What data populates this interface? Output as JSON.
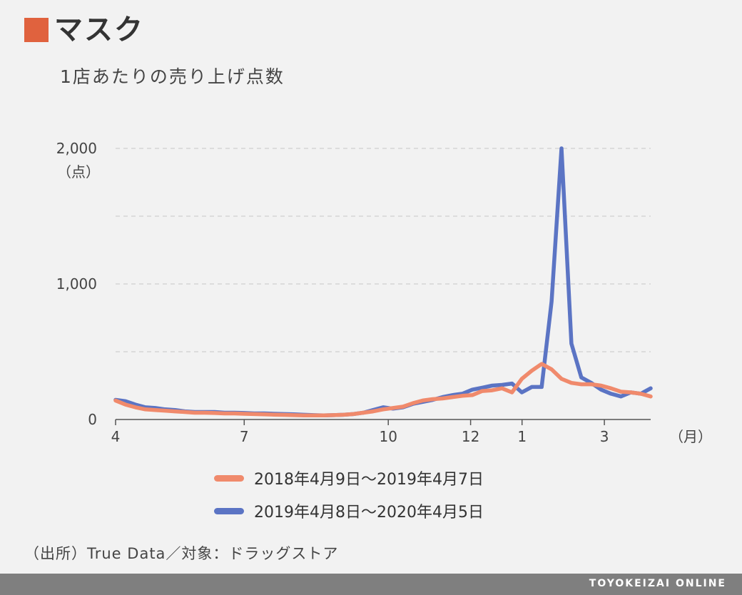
{
  "title": "マスク",
  "subtitle": "1店あたりの売り上げ点数",
  "source": "（出所）True Data／対象：ドラッグストア",
  "footer": "TOYOKEIZAI ONLINE",
  "colors": {
    "accent": "#e0623e",
    "series_2018": "#f08a6c",
    "series_2019": "#5b74c4"
  },
  "chart_data": {
    "type": "line",
    "ylabel": "（点）",
    "xunit": "（月）",
    "ylim": [
      0,
      2000
    ],
    "yticks": [
      0,
      1000,
      2000
    ],
    "ytick_labels": [
      "0",
      "1,000",
      "2,000"
    ],
    "ygrid": [
      500,
      1000,
      1500,
      2000
    ],
    "xlim": [
      0,
      52
    ],
    "xticks": [
      {
        "week": 0,
        "label": "4"
      },
      {
        "week": 12.5,
        "label": "7"
      },
      {
        "week": 26.5,
        "label": "10"
      },
      {
        "week": 34.5,
        "label": "12"
      },
      {
        "week": 39.5,
        "label": "1"
      },
      {
        "week": 47.5,
        "label": "3"
      }
    ],
    "grid": true,
    "legend_position": "bottom",
    "series": [
      {
        "name": "2019年4月8日～2020年4月5日",
        "color": "#5b74c4",
        "values": [
          145,
          135,
          110,
          90,
          85,
          75,
          70,
          60,
          55,
          55,
          55,
          50,
          50,
          48,
          45,
          45,
          42,
          40,
          38,
          35,
          32,
          30,
          32,
          35,
          40,
          50,
          70,
          90,
          80,
          90,
          115,
          130,
          145,
          165,
          180,
          190,
          220,
          235,
          250,
          255,
          265,
          200,
          240,
          240,
          870,
          2000,
          560,
          310,
          270,
          220,
          190,
          170,
          200,
          190,
          230
        ]
      },
      {
        "name": "2018年4月9日～2019年4月7日",
        "color": "#f08a6c",
        "values": [
          140,
          110,
          90,
          75,
          70,
          65,
          60,
          55,
          50,
          50,
          48,
          45,
          45,
          42,
          40,
          38,
          36,
          34,
          32,
          30,
          30,
          30,
          32,
          35,
          40,
          50,
          60,
          75,
          85,
          95,
          120,
          140,
          150,
          155,
          165,
          175,
          180,
          210,
          215,
          230,
          200,
          300,
          360,
          410,
          370,
          300,
          270,
          260,
          260,
          250,
          230,
          205,
          200,
          190,
          170
        ]
      }
    ]
  }
}
